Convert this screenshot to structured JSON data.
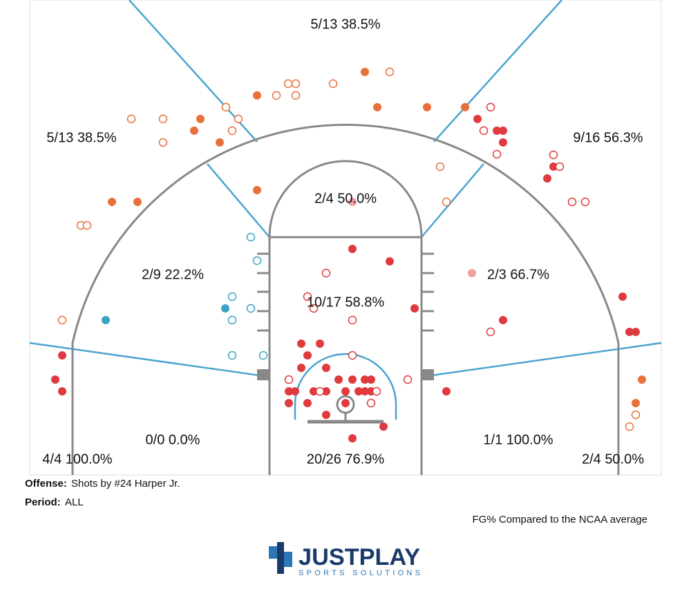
{
  "zones": [
    {
      "label": "5/13 38.5%"
    },
    {
      "label": "5/13 38.5%"
    },
    {
      "label": "9/16 56.3%"
    },
    {
      "label": "2/4 50.0%"
    },
    {
      "label": "2/9 22.2%"
    },
    {
      "label": "10/17 58.8%"
    },
    {
      "label": "2/3 66.7%"
    },
    {
      "label": "0/0 0.0%"
    },
    {
      "label": "1/1 100.0%"
    },
    {
      "label": "4/4 100.0%"
    },
    {
      "label": "20/26 76.9%"
    },
    {
      "label": "2/4 50.0%"
    }
  ],
  "footer": {
    "offense_label": "Offense:",
    "offense": "Shots by #24 Harper Jr.",
    "period_label": "Period:",
    "period": "ALL",
    "note": "FG% Compared to the NCAA average"
  },
  "logo": {
    "name": "JUSTPLAY",
    "tagline": "SPORTS SOLUTIONS"
  }
}
